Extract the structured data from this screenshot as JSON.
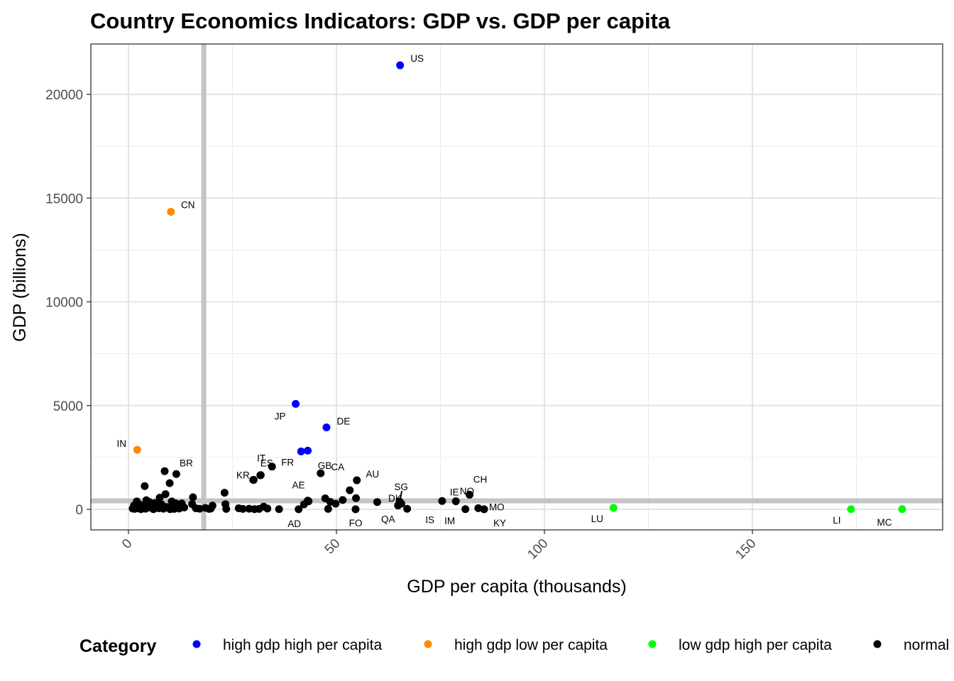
{
  "chart_data": {
    "type": "scatter",
    "title": "Country Economics Indicators: GDP vs. GDP per capita",
    "xlabel": "GDP per capita (thousands)",
    "ylabel": "GDP (billions)",
    "xlim": [
      -4.5,
      195
    ],
    "ylim": [
      -1000,
      22300
    ],
    "x_ticks": [
      0,
      50,
      100,
      150
    ],
    "x_tick_labels": [
      "0",
      "50",
      "100",
      "150"
    ],
    "y_ticks": [
      0,
      5000,
      10000,
      15000,
      20000
    ],
    "y_tick_labels": [
      "0",
      "5000",
      "10000",
      "15000",
      "20000"
    ],
    "grid": true,
    "reference_lines": {
      "vertical_x": 18.1,
      "horizontal_y": 410
    },
    "legend": {
      "title": "Category",
      "position": "bottom",
      "entries": [
        {
          "name": "high gdp high per capita",
          "color": "#0000ff"
        },
        {
          "name": "high gdp low per capita",
          "color": "#ff8c00"
        },
        {
          "name": "low gdp high per capita",
          "color": "#00ff00"
        },
        {
          "name": "normal",
          "color": "#000000"
        }
      ]
    },
    "labeled_points": [
      {
        "label": "US",
        "x": 65.3,
        "y": 21400,
        "category": "high gdp high per capita"
      },
      {
        "label": "CN",
        "x": 10.2,
        "y": 14340,
        "category": "high gdp low per capita"
      },
      {
        "label": "JP",
        "x": 40.2,
        "y": 5080,
        "category": "high gdp high per capita"
      },
      {
        "label": "DE",
        "x": 47.6,
        "y": 3950,
        "category": "high gdp high per capita"
      },
      {
        "label": "GB",
        "x": 43.1,
        "y": 2830,
        "category": "high gdp high per capita"
      },
      {
        "label": "FR",
        "x": 41.5,
        "y": 2790,
        "category": "high gdp high per capita"
      },
      {
        "label": "IN",
        "x": 2.1,
        "y": 2870,
        "category": "high gdp low per capita"
      },
      {
        "label": "BR",
        "x": 11.5,
        "y": 1700,
        "category": "normal"
      },
      {
        "label": "IT",
        "x": 34.5,
        "y": 2060,
        "category": "normal"
      },
      {
        "label": "KR",
        "x": 31.8,
        "y": 1650,
        "category": "normal"
      },
      {
        "label": "CA",
        "x": 46.2,
        "y": 1740,
        "category": "normal"
      },
      {
        "label": "AU",
        "x": 54.9,
        "y": 1400,
        "category": "normal"
      },
      {
        "label": "ES",
        "x": 30.0,
        "y": 1420,
        "category": "normal"
      },
      {
        "label": "AE",
        "x": 43.1,
        "y": 420,
        "category": "normal"
      },
      {
        "label": "AD",
        "x": 40.9,
        "y": 3,
        "category": "normal"
      },
      {
        "label": "DK",
        "x": 59.8,
        "y": 350,
        "category": "normal"
      },
      {
        "label": "FO",
        "x": 54.6,
        "y": 3,
        "category": "normal"
      },
      {
        "label": "SG",
        "x": 65.2,
        "y": 372,
        "category": "normal"
      },
      {
        "label": "QA",
        "x": 64.8,
        "y": 183,
        "category": "normal"
      },
      {
        "label": "IS",
        "x": 67.0,
        "y": 24,
        "category": "normal"
      },
      {
        "label": "NO",
        "x": 75.4,
        "y": 403,
        "category": "normal"
      },
      {
        "label": "IE",
        "x": 78.7,
        "y": 389,
        "category": "normal"
      },
      {
        "label": "IM",
        "x": 81.0,
        "y": 7,
        "category": "normal"
      },
      {
        "label": "CH",
        "x": 82.0,
        "y": 703,
        "category": "normal"
      },
      {
        "label": "MO",
        "x": 84.1,
        "y": 55,
        "category": "normal"
      },
      {
        "label": "KY",
        "x": 85.5,
        "y": 6,
        "category": "normal"
      },
      {
        "label": "LU",
        "x": 116.6,
        "y": 71,
        "category": "low gdp high per capita"
      },
      {
        "label": "LI",
        "x": 173.7,
        "y": 7,
        "category": "low gdp high per capita"
      },
      {
        "label": "MC",
        "x": 186.0,
        "y": 7,
        "category": "low gdp high per capita"
      }
    ],
    "unlabeled_points": [
      [
        8.7,
        1840
      ],
      [
        3.9,
        1120
      ],
      [
        9.9,
        1260
      ],
      [
        8.9,
        730
      ],
      [
        7.5,
        560
      ],
      [
        4.3,
        440
      ],
      [
        2.0,
        380
      ],
      [
        1.0,
        40
      ],
      [
        1.5,
        20
      ],
      [
        2.2,
        60
      ],
      [
        2.8,
        30
      ],
      [
        3.3,
        120
      ],
      [
        3.8,
        200
      ],
      [
        4.6,
        80
      ],
      [
        5.2,
        150
      ],
      [
        5.8,
        40
      ],
      [
        6.3,
        300
      ],
      [
        6.8,
        90
      ],
      [
        7.3,
        50
      ],
      [
        7.9,
        250
      ],
      [
        8.4,
        30
      ],
      [
        9.1,
        110
      ],
      [
        9.7,
        60
      ],
      [
        10.4,
        380
      ],
      [
        11.0,
        20
      ],
      [
        11.6,
        170
      ],
      [
        12.2,
        40
      ],
      [
        12.8,
        280
      ],
      [
        13.4,
        90
      ],
      [
        1.3,
        180
      ],
      [
        2.5,
        250
      ],
      [
        3.0,
        10
      ],
      [
        4.1,
        30
      ],
      [
        5.0,
        350
      ],
      [
        6.0,
        10
      ],
      [
        7.0,
        200
      ],
      [
        8.0,
        100
      ],
      [
        10.0,
        10
      ],
      [
        11.3,
        290
      ],
      [
        12.0,
        80
      ],
      [
        15.3,
        250
      ],
      [
        15.5,
        580
      ],
      [
        16.2,
        50
      ],
      [
        17.1,
        30
      ],
      [
        18.5,
        70
      ],
      [
        19.4,
        20
      ],
      [
        20.2,
        180
      ],
      [
        19.8,
        40
      ],
      [
        23.1,
        800
      ],
      [
        23.3,
        250
      ],
      [
        23.5,
        20
      ],
      [
        26.5,
        50
      ],
      [
        27.5,
        20
      ],
      [
        29.0,
        30
      ],
      [
        30.3,
        10
      ],
      [
        31.4,
        20
      ],
      [
        32.5,
        130
      ],
      [
        33.4,
        40
      ],
      [
        36.2,
        10
      ],
      [
        30.1,
        1420
      ],
      [
        31.7,
        1640
      ],
      [
        42.2,
        240
      ],
      [
        43.3,
        390
      ],
      [
        47.3,
        530
      ],
      [
        48.0,
        20
      ],
      [
        48.5,
        360
      ],
      [
        49.8,
        270
      ],
      [
        51.5,
        450
      ],
      [
        53.2,
        920
      ],
      [
        54.7,
        540
      ],
      [
        65.6,
        275
      ]
    ]
  }
}
